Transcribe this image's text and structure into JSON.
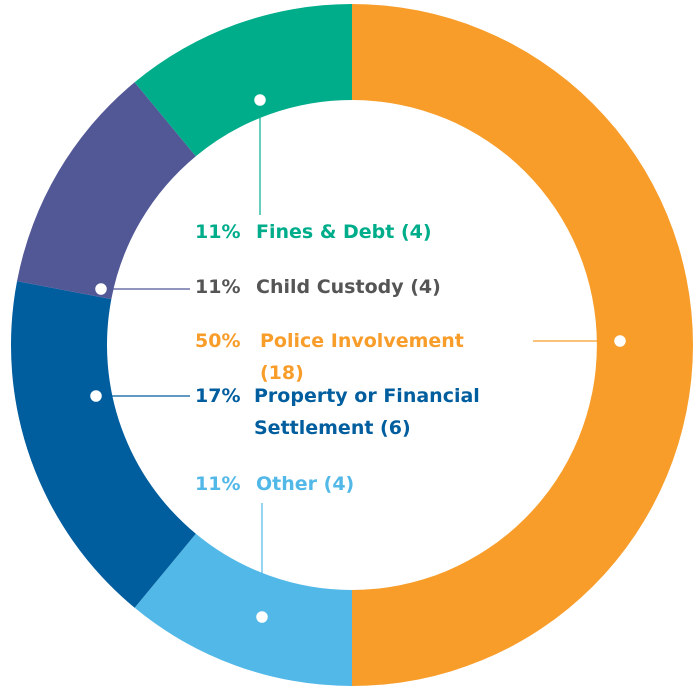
{
  "chart_data": {
    "type": "donut",
    "categories": [
      "Police Involvement (18)",
      "Other (4)",
      "Property or Financial Settlement (6)",
      "Child Custody (4)",
      "Fines & Debt (4)"
    ],
    "values": [
      50,
      11,
      17,
      11,
      11
    ],
    "value_labels": [
      "50%",
      "11%",
      "17%",
      "11%",
      "11%"
    ],
    "colors": [
      "#f89d2a",
      "#52b8e8",
      "#005d9e",
      "#525796",
      "#00ad8b"
    ],
    "label_colors": [
      "#f89d2a",
      "#52b8e8",
      "#005d9e",
      "#555555",
      "#00ad8b"
    ]
  }
}
